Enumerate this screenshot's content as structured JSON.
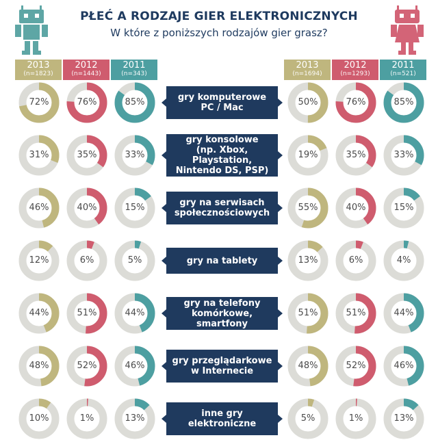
{
  "header": {
    "title": "PŁEĆ A RODZAJE GIER ELEKTRONICZNYCH",
    "subtitle": "W które z poniższych rodzajów gier grasz?"
  },
  "colors": {
    "y2013": "#bfb67e",
    "y2012": "#cf5c6e",
    "y2011": "#4d9fa1",
    "track": "#dcdcd7",
    "category_bg": "#1f3a5e",
    "male_robot": "#5ea6a5",
    "female_robot": "#d36477"
  },
  "icons": {
    "male": "robot-icon",
    "female": "female-robot-icon"
  },
  "chart_data": {
    "type": "donut",
    "title": "PŁEĆ A RODZAJE GIER ELEKTRONICZNYCH",
    "subtitle": "W które z poniższych rodzajów gier grasz?",
    "groups": [
      {
        "side": "left",
        "years": [
          {
            "year": "2013",
            "n": "(n=1823)"
          },
          {
            "year": "2012",
            "n": "(n=1443)"
          },
          {
            "year": "2011",
            "n": "(n=343)"
          }
        ]
      },
      {
        "side": "right",
        "years": [
          {
            "year": "2013",
            "n": "(n=1694)"
          },
          {
            "year": "2012",
            "n": "(n=1293)"
          },
          {
            "year": "2011",
            "n": "(n=521)"
          }
        ]
      }
    ],
    "categories": [
      {
        "label": "gry komputerowe\nPC / Mac",
        "left": [
          72,
          76,
          85
        ],
        "right": [
          50,
          76,
          85
        ]
      },
      {
        "label": "gry konsolowe\n(np. Xbox, Playstation,\nNintendo DS, PSP)",
        "left": [
          31,
          35,
          33
        ],
        "right": [
          19,
          35,
          33
        ]
      },
      {
        "label": "gry na serwisach\nspołecznościowych",
        "left": [
          46,
          40,
          15
        ],
        "right": [
          55,
          40,
          15
        ]
      },
      {
        "label": "gry na tablety",
        "left": [
          12,
          6,
          5
        ],
        "right": [
          13,
          6,
          4
        ]
      },
      {
        "label": "gry na telefony\nkomórkowe, smartfony",
        "left": [
          44,
          51,
          44
        ],
        "right": [
          51,
          51,
          44
        ]
      },
      {
        "label": "gry przeglądarkowe\nw Internecie",
        "left": [
          48,
          52,
          46
        ],
        "right": [
          48,
          52,
          46
        ]
      },
      {
        "label": "inne gry\nelektroniczne",
        "left": [
          10,
          1,
          13
        ],
        "right": [
          5,
          1,
          13
        ]
      }
    ],
    "value_suffix": "%"
  }
}
